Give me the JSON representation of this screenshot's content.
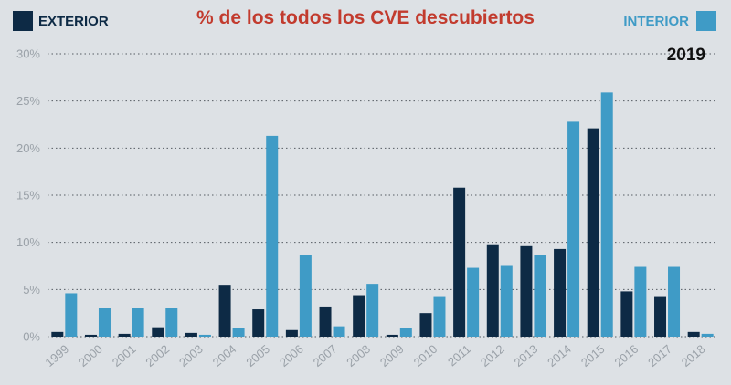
{
  "chart_data": {
    "type": "bar",
    "title": "% de los todos los CVE descubiertos",
    "annotation": "2019",
    "xlabel": "",
    "ylabel": "",
    "ylim": [
      0,
      30
    ],
    "yticks": [
      "0%",
      "5%",
      "10%",
      "15%",
      "20%",
      "25%",
      "30%"
    ],
    "ytick_values": [
      0,
      5,
      10,
      15,
      20,
      25,
      30
    ],
    "grid": true,
    "legend_position": "top",
    "categories": [
      "1999",
      "2000",
      "2001",
      "2002",
      "2003",
      "2004",
      "2005",
      "2006",
      "2007",
      "2008",
      "2009",
      "2010",
      "2011",
      "2012",
      "2013",
      "2014",
      "2015",
      "2016",
      "2017",
      "2018"
    ],
    "series": [
      {
        "name": "EXTERIOR",
        "color": "#0d2a45",
        "values": [
          0.5,
          0.2,
          0.3,
          1.0,
          0.4,
          5.5,
          2.9,
          0.7,
          3.2,
          4.4,
          0.2,
          2.5,
          15.8,
          9.8,
          9.6,
          9.3,
          22.1,
          4.8,
          4.3,
          0.5
        ]
      },
      {
        "name": "INTERIOR",
        "color": "#3f9bc6",
        "values": [
          4.6,
          3.0,
          3.0,
          3.0,
          0.2,
          0.9,
          21.3,
          8.7,
          1.1,
          5.6,
          0.9,
          4.3,
          7.3,
          7.5,
          8.7,
          22.8,
          25.9,
          7.4,
          7.4,
          0.3
        ]
      }
    ]
  }
}
